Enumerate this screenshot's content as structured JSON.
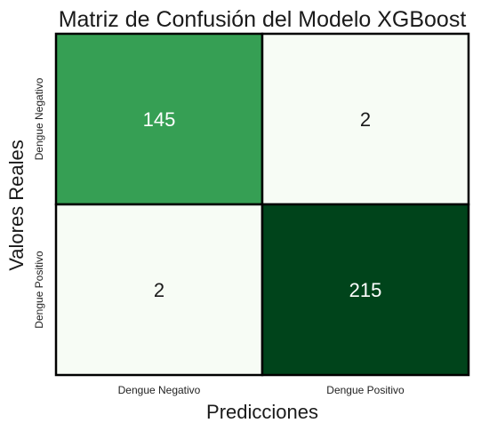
{
  "chart_data": {
    "type": "heatmap",
    "title": "Matriz de Confusión del Modelo XGBoost",
    "xlabel": "Predicciones",
    "ylabel": "Valores Reales",
    "x_categories": [
      "Dengue Negativo",
      "Dengue Positivo"
    ],
    "y_categories": [
      "Dengue Negativo",
      "Dengue Positivo"
    ],
    "values": [
      [
        145,
        2
      ],
      [
        2,
        215
      ]
    ],
    "colormap": "Greens",
    "colors": {
      "low": "#f7fcf5",
      "high": "#00441b",
      "text_dark": "#1a1a1a",
      "text_light": "#ffffff",
      "cell_border": "#000000"
    },
    "colorbar": false
  }
}
